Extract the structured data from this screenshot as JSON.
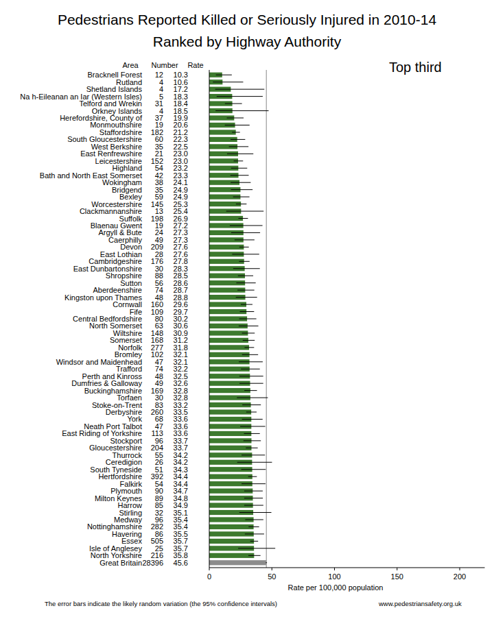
{
  "chart_data": {
    "type": "bar",
    "orientation": "horizontal",
    "title": "Pedestrians Reported Killed or Seriously Injured in 2010-14",
    "subtitle": "Ranked by Highway Authority",
    "annotation": "Top third",
    "column_headers": [
      "Area",
      "Number",
      "Rate"
    ],
    "xlabel": "Rate per 100,000 population",
    "note": "The error bars indicate the likely random variation (the 95% confidence intervals)",
    "source": "www.pedestriansafety.org.uk",
    "xlim": [
      0,
      220
    ],
    "xticks": [
      0,
      50,
      100,
      150,
      200
    ],
    "grid": false,
    "data_labels": false,
    "categories": [
      "Bracknell Forest",
      "Rutland",
      "Shetland Islands",
      "Na h-Eileanan an Iar (Western Isles)",
      "Telford and Wrekin",
      "Orkney Islands",
      "Herefordshire, County of",
      "Monmouthshire",
      "Staffordshire",
      "South Gloucestershire",
      "West Berkshire",
      "East Renfrewshire",
      "Leicestershire",
      "Highland",
      "Bath and North East Somerset",
      "Wokingham",
      "Bridgend",
      "Bexley",
      "Worcestershire",
      "Clackmannanshire",
      "Suffolk",
      "Blaenau Gwent",
      "Argyll & Bute",
      "Caerphilly",
      "Devon",
      "East Lothian",
      "Cambridgeshire",
      "East Dunbartonshire",
      "Shropshire",
      "Sutton",
      "Aberdeenshire",
      "Kingston upon Thames",
      "Cornwall",
      "Fife",
      "Central Bedfordshire",
      "North Somerset",
      "Wiltshire",
      "Somerset",
      "Norfolk",
      "Bromley",
      "Windsor and Maidenhead",
      "Trafford",
      "Perth and Kinross",
      "Dumfries & Galloway",
      "Buckinghamshire",
      "Torfaen",
      "Stoke-on-Trent",
      "Derbyshire",
      "York",
      "Neath Port Talbot",
      "East Riding of Yorkshire",
      "Stockport",
      "Gloucestershire",
      "Thurrock",
      "Ceredigion",
      "South Tyneside",
      "Hertfordshire",
      "Falkirk",
      "Plymouth",
      "Milton Keynes",
      "Harrow",
      "Stirling",
      "Medway",
      "Nottinghamshire",
      "Havering",
      "Essex",
      "Isle of Anglesey",
      "North Yorkshire",
      "Great Britain"
    ],
    "numbers": [
      12,
      4,
      4,
      5,
      31,
      4,
      37,
      19,
      182,
      60,
      35,
      21,
      152,
      54,
      42,
      38,
      35,
      59,
      145,
      13,
      198,
      19,
      24,
      49,
      209,
      28,
      176,
      30,
      88,
      56,
      74,
      48,
      160,
      109,
      80,
      63,
      148,
      168,
      277,
      102,
      47,
      74,
      48,
      49,
      169,
      30,
      83,
      260,
      68,
      47,
      113,
      96,
      204,
      55,
      26,
      51,
      392,
      54,
      90,
      89,
      85,
      32,
      96,
      282,
      86,
      505,
      25,
      216,
      28396
    ],
    "values": [
      10.3,
      10.6,
      17.2,
      18.3,
      18.4,
      18.5,
      19.9,
      20.6,
      21.2,
      22.3,
      22.5,
      23.0,
      23.0,
      23.2,
      23.3,
      24.1,
      24.9,
      24.9,
      25.3,
      25.4,
      26.9,
      27.2,
      27.3,
      27.3,
      27.6,
      27.6,
      27.8,
      28.3,
      28.5,
      28.6,
      28.7,
      28.8,
      29.6,
      29.7,
      30.2,
      30.6,
      30.9,
      31.2,
      31.8,
      32.1,
      32.1,
      32.2,
      32.5,
      32.6,
      32.8,
      32.8,
      33.2,
      33.5,
      33.6,
      33.6,
      33.6,
      33.7,
      33.7,
      34.2,
      34.2,
      34.3,
      34.4,
      34.4,
      34.7,
      34.8,
      34.9,
      35.1,
      35.4,
      35.4,
      35.5,
      35.7,
      35.7,
      35.8,
      45.6
    ],
    "value_labels": [
      "10.3",
      "10.6",
      "17.2",
      "18.3",
      "18.4",
      "18.5",
      "19.9",
      "20.6",
      "21.2",
      "22.3",
      "22.5",
      "23.0",
      "23.0",
      "23.2",
      "23.3",
      "24.1",
      "24.9",
      "24.9",
      "25.3",
      "25.4",
      "26.9",
      "27.2",
      "27.3",
      "27.3",
      "27.6",
      "27.6",
      "27.8",
      "28.3",
      "28.5",
      "28.6",
      "28.7",
      "28.8",
      "29.6",
      "29.7",
      "30.2",
      "30.6",
      "30.9",
      "31.2",
      "31.8",
      "32.1",
      "32.1",
      "32.2",
      "32.5",
      "32.6",
      "32.8",
      "32.8",
      "33.2",
      "33.5",
      "33.6",
      "33.6",
      "33.6",
      "33.7",
      "33.7",
      "34.2",
      "34.2",
      "34.3",
      "34.4",
      "34.4",
      "34.7",
      "34.8",
      "34.9",
      "35.1",
      "35.4",
      "35.4",
      "35.5",
      "35.7",
      "35.7",
      "35.8",
      "45.6"
    ],
    "ci_low": [
      5.3,
      2.9,
      4.7,
      5.9,
      12.5,
      5.0,
      14.0,
      12.4,
      18.2,
      17.0,
      15.7,
      14.2,
      19.5,
      17.4,
      16.8,
      17.1,
      17.3,
      19.0,
      21.3,
      13.5,
      23.3,
      16.4,
      17.5,
      20.2,
      24.0,
      18.3,
      23.8,
      19.1,
      22.9,
      21.6,
      22.5,
      21.2,
      25.2,
      24.4,
      23.9,
      23.5,
      26.1,
      26.7,
      28.2,
      26.2,
      23.6,
      25.3,
      24.0,
      24.1,
      28.0,
      22.1,
      26.4,
      29.5,
      26.1,
      24.7,
      27.7,
      27.3,
      29.2,
      25.8,
      22.3,
      25.5,
      31.1,
      25.8,
      27.9,
      27.9,
      27.9,
      24.0,
      28.7,
      31.4,
      28.4,
      32.7,
      23.1,
      31.2,
      45.1
    ],
    "ci_high": [
      18.0,
      27.1,
      44.0,
      42.7,
      26.1,
      47.4,
      27.4,
      32.2,
      24.5,
      28.7,
      31.3,
      35.2,
      27.0,
      30.3,
      31.5,
      33.1,
      34.6,
      32.1,
      29.8,
      43.4,
      30.9,
      42.5,
      40.6,
      36.1,
      31.6,
      39.9,
      32.2,
      40.4,
      35.1,
      37.1,
      36.0,
      38.2,
      34.5,
      35.8,
      37.6,
      39.2,
      36.3,
      36.3,
      35.8,
      39.0,
      42.7,
      40.4,
      43.1,
      43.1,
      38.1,
      46.8,
      41.2,
      37.8,
      42.6,
      44.7,
      40.4,
      41.2,
      38.7,
      44.5,
      50.1,
      45.1,
      38.0,
      44.9,
      42.7,
      42.8,
      43.2,
      49.6,
      43.2,
      39.8,
      43.8,
      39.0,
      52.7,
      40.9,
      46.1
    ],
    "colors": [
      "#3d7a2e",
      "#3d7a2e",
      "#3d7a2e",
      "#3d7a2e",
      "#3d7a2e",
      "#3d7a2e",
      "#3d7a2e",
      "#3d7a2e",
      "#3d7a2e",
      "#3d7a2e",
      "#3d7a2e",
      "#3d7a2e",
      "#3d7a2e",
      "#3d7a2e",
      "#3d7a2e",
      "#3d7a2e",
      "#3d7a2e",
      "#3d7a2e",
      "#3d7a2e",
      "#3d7a2e",
      "#3d7a2e",
      "#3d7a2e",
      "#3d7a2e",
      "#3d7a2e",
      "#3d7a2e",
      "#3d7a2e",
      "#3d7a2e",
      "#3d7a2e",
      "#3d7a2e",
      "#3d7a2e",
      "#3d7a2e",
      "#3d7a2e",
      "#3d7a2e",
      "#3d7a2e",
      "#3d7a2e",
      "#3d7a2e",
      "#3d7a2e",
      "#3d7a2e",
      "#3d7a2e",
      "#3d7a2e",
      "#3d7a2e",
      "#3d7a2e",
      "#3d7a2e",
      "#3d7a2e",
      "#3d7a2e",
      "#3d7a2e",
      "#3d7a2e",
      "#3d7a2e",
      "#3d7a2e",
      "#3d7a2e",
      "#3d7a2e",
      "#3d7a2e",
      "#3d7a2e",
      "#3d7a2e",
      "#3d7a2e",
      "#3d7a2e",
      "#3d7a2e",
      "#3d7a2e",
      "#3d7a2e",
      "#3d7a2e",
      "#3d7a2e",
      "#3d7a2e",
      "#3d7a2e",
      "#3d7a2e",
      "#3d7a2e",
      "#3d7a2e",
      "#3d7a2e",
      "#3d7a2e",
      "#8c8c8c"
    ]
  }
}
